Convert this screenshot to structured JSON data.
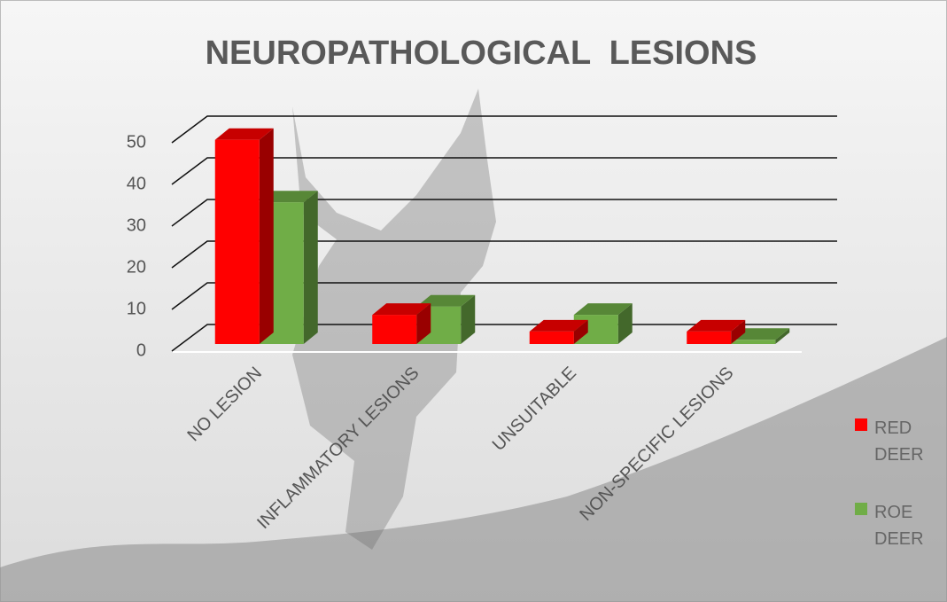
{
  "chart_data": {
    "type": "bar3d",
    "title": "NEUROPATHOLOGICAL  LESIONS",
    "categories": [
      "NO LESION",
      "INFLAMMATORY LESIONS",
      "UNSUITABLE",
      "NON-SPECIFIC LESIONS"
    ],
    "series": [
      {
        "name": "RED DEER",
        "color": "#ff0000",
        "values": [
          49,
          7,
          3,
          3
        ]
      },
      {
        "name": "ROE DEER",
        "color": "#70ad47",
        "values": [
          34,
          9,
          7,
          1
        ]
      }
    ],
    "ylim": [
      0,
      50
    ],
    "yticks": [
      0,
      10,
      20,
      30,
      40,
      50
    ],
    "grid": true
  }
}
